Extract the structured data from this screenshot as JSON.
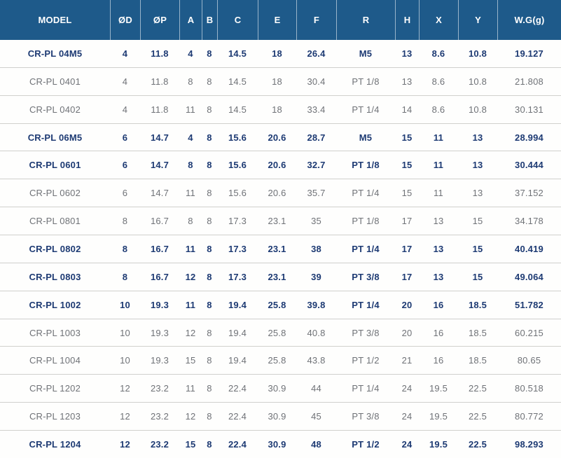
{
  "colors": {
    "header_bg": "#1e5a8a",
    "header_text": "#ffffff",
    "bold_row_text": "#1d3a73",
    "regular_row_text": "#6f7277",
    "row_border": "#d0d0cd"
  },
  "table": {
    "columns": [
      {
        "key": "model",
        "label": "MODEL",
        "cls": "w-model"
      },
      {
        "key": "od",
        "label": "ØD",
        "cls": "w-od"
      },
      {
        "key": "op",
        "label": "ØP",
        "cls": "w-op"
      },
      {
        "key": "a",
        "label": "A",
        "cls": "w-a"
      },
      {
        "key": "b",
        "label": "B",
        "cls": "w-b"
      },
      {
        "key": "c",
        "label": "C",
        "cls": "w-c"
      },
      {
        "key": "e",
        "label": "E",
        "cls": "w-e"
      },
      {
        "key": "f",
        "label": "F",
        "cls": "w-f"
      },
      {
        "key": "r",
        "label": "R",
        "cls": "w-r"
      },
      {
        "key": "h",
        "label": "H",
        "cls": "w-h"
      },
      {
        "key": "x",
        "label": "X",
        "cls": "w-x"
      },
      {
        "key": "y",
        "label": "Y",
        "cls": "w-y"
      },
      {
        "key": "wg",
        "label": "W.G(g)",
        "cls": "w-wg"
      }
    ],
    "rows": [
      {
        "model": "CR-PL 04M5",
        "od": "4",
        "op": "11.8",
        "a": "4",
        "b": "8",
        "c": "14.5",
        "e": "18",
        "f": "26.4",
        "r": "M5",
        "h": "13",
        "x": "8.6",
        "y": "10.8",
        "wg": "19.127",
        "bold": true
      },
      {
        "model": "CR-PL 0401",
        "od": "4",
        "op": "11.8",
        "a": "8",
        "b": "8",
        "c": "14.5",
        "e": "18",
        "f": "30.4",
        "r": "PT 1/8",
        "h": "13",
        "x": "8.6",
        "y": "10.8",
        "wg": "21.808",
        "bold": false
      },
      {
        "model": "CR-PL 0402",
        "od": "4",
        "op": "11.8",
        "a": "11",
        "b": "8",
        "c": "14.5",
        "e": "18",
        "f": "33.4",
        "r": "PT 1/4",
        "h": "14",
        "x": "8.6",
        "y": "10.8",
        "wg": "30.131",
        "bold": false
      },
      {
        "model": "CR-PL 06M5",
        "od": "6",
        "op": "14.7",
        "a": "4",
        "b": "8",
        "c": "15.6",
        "e": "20.6",
        "f": "28.7",
        "r": "M5",
        "h": "15",
        "x": "11",
        "y": "13",
        "wg": "28.994",
        "bold": true
      },
      {
        "model": "CR-PL 0601",
        "od": "6",
        "op": "14.7",
        "a": "8",
        "b": "8",
        "c": "15.6",
        "e": "20.6",
        "f": "32.7",
        "r": "PT 1/8",
        "h": "15",
        "x": "11",
        "y": "13",
        "wg": "30.444",
        "bold": true
      },
      {
        "model": "CR-PL 0602",
        "od": "6",
        "op": "14.7",
        "a": "11",
        "b": "8",
        "c": "15.6",
        "e": "20.6",
        "f": "35.7",
        "r": "PT 1/4",
        "h": "15",
        "x": "11",
        "y": "13",
        "wg": "37.152",
        "bold": false
      },
      {
        "model": "CR-PL 0801",
        "od": "8",
        "op": "16.7",
        "a": "8",
        "b": "8",
        "c": "17.3",
        "e": "23.1",
        "f": "35",
        "r": "PT 1/8",
        "h": "17",
        "x": "13",
        "y": "15",
        "wg": "34.178",
        "bold": false
      },
      {
        "model": "CR-PL 0802",
        "od": "8",
        "op": "16.7",
        "a": "11",
        "b": "8",
        "c": "17.3",
        "e": "23.1",
        "f": "38",
        "r": "PT 1/4",
        "h": "17",
        "x": "13",
        "y": "15",
        "wg": "40.419",
        "bold": true
      },
      {
        "model": "CR-PL 0803",
        "od": "8",
        "op": "16.7",
        "a": "12",
        "b": "8",
        "c": "17.3",
        "e": "23.1",
        "f": "39",
        "r": "PT 3/8",
        "h": "17",
        "x": "13",
        "y": "15",
        "wg": "49.064",
        "bold": true
      },
      {
        "model": "CR-PL 1002",
        "od": "10",
        "op": "19.3",
        "a": "11",
        "b": "8",
        "c": "19.4",
        "e": "25.8",
        "f": "39.8",
        "r": "PT 1/4",
        "h": "20",
        "x": "16",
        "y": "18.5",
        "wg": "51.782",
        "bold": true
      },
      {
        "model": "CR-PL 1003",
        "od": "10",
        "op": "19.3",
        "a": "12",
        "b": "8",
        "c": "19.4",
        "e": "25.8",
        "f": "40.8",
        "r": "PT 3/8",
        "h": "20",
        "x": "16",
        "y": "18.5",
        "wg": "60.215",
        "bold": false
      },
      {
        "model": "CR-PL 1004",
        "od": "10",
        "op": "19.3",
        "a": "15",
        "b": "8",
        "c": "19.4",
        "e": "25.8",
        "f": "43.8",
        "r": "PT 1/2",
        "h": "21",
        "x": "16",
        "y": "18.5",
        "wg": "80.65",
        "bold": false
      },
      {
        "model": "CR-PL 1202",
        "od": "12",
        "op": "23.2",
        "a": "11",
        "b": "8",
        "c": "22.4",
        "e": "30.9",
        "f": "44",
        "r": "PT 1/4",
        "h": "24",
        "x": "19.5",
        "y": "22.5",
        "wg": "80.518",
        "bold": false
      },
      {
        "model": "CR-PL 1203",
        "od": "12",
        "op": "23.2",
        "a": "12",
        "b": "8",
        "c": "22.4",
        "e": "30.9",
        "f": "45",
        "r": "PT 3/8",
        "h": "24",
        "x": "19.5",
        "y": "22.5",
        "wg": "80.772",
        "bold": false
      },
      {
        "model": "CR-PL 1204",
        "od": "12",
        "op": "23.2",
        "a": "15",
        "b": "8",
        "c": "22.4",
        "e": "30.9",
        "f": "48",
        "r": "PT 1/2",
        "h": "24",
        "x": "19.5",
        "y": "22.5",
        "wg": "98.293",
        "bold": true
      }
    ]
  }
}
